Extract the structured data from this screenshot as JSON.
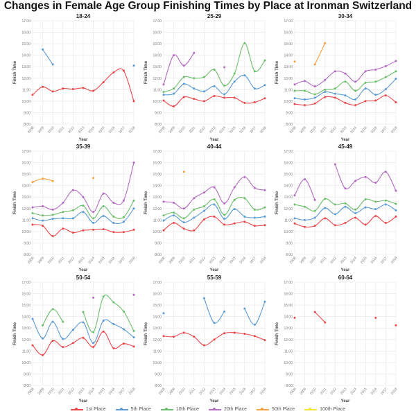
{
  "title": "Changes in Female Age Group Finishing Times by Place at Ironman Switzerland",
  "chart_data": {
    "type": "line",
    "xlabel": "Year",
    "ylabel": "Finish Time",
    "x": [
      2008,
      2009,
      2010,
      2011,
      2012,
      2013,
      2014,
      2015,
      2016,
      2017,
      2018
    ],
    "yticks": [
      "8:00",
      "9:00",
      "10:00",
      "11:00",
      "12:00",
      "13:00",
      "14:00",
      "15:00",
      "16:00",
      "17:00"
    ],
    "ylim": [
      8,
      17
    ],
    "y_units": "hours",
    "grid": true,
    "legend_position": "bottom",
    "series_meta": [
      {
        "name": "1st Place",
        "color": "#e8474a"
      },
      {
        "name": "5th Place",
        "color": "#5b9bd5"
      },
      {
        "name": "10th Place",
        "color": "#6abf69"
      },
      {
        "name": "20th Place",
        "color": "#b36ac2"
      },
      {
        "name": "50th Place",
        "color": "#f7a03c"
      },
      {
        "name": "100th Place",
        "color": "#f2e33a"
      }
    ],
    "panels": [
      {
        "title": "18-24",
        "series": [
          [
            10.55,
            11.25,
            10.85,
            11.1,
            11.05,
            11.15,
            10.9,
            11.65,
            12.5,
            12.65,
            10.0
          ],
          [
            null,
            14.5,
            13.2,
            null,
            null,
            null,
            null,
            null,
            null,
            null,
            13.1
          ],
          [],
          [],
          [],
          []
        ]
      },
      {
        "title": "25-29",
        "series": [
          [
            10.05,
            9.55,
            10.35,
            10.2,
            10.0,
            10.45,
            10.3,
            10.3,
            9.85,
            9.9,
            10.25
          ],
          [
            10.55,
            10.65,
            11.5,
            11.1,
            10.85,
            11.3,
            10.6,
            11.7,
            12.25,
            11.1,
            11.4
          ],
          [
            10.8,
            11.1,
            12.1,
            12.0,
            12.1,
            12.75,
            11.35,
            12.4,
            15.05,
            12.6,
            13.55
          ],
          [
            11.45,
            14.0,
            13.1,
            14.2,
            null,
            null,
            12.95,
            null,
            null,
            null,
            null
          ],
          [],
          []
        ]
      },
      {
        "title": "30-34",
        "series": [
          [
            9.75,
            9.65,
            9.8,
            10.35,
            10.3,
            9.85,
            9.65,
            10.0,
            10.05,
            10.5,
            9.9
          ],
          [
            10.25,
            10.15,
            10.3,
            10.8,
            10.65,
            10.5,
            10.15,
            11.1,
            10.55,
            11.05,
            11.95
          ],
          [
            10.9,
            10.9,
            10.6,
            11.0,
            11.1,
            11.7,
            10.9,
            11.6,
            11.7,
            12.1,
            12.6
          ],
          [
            11.45,
            11.75,
            11.3,
            11.85,
            12.6,
            12.4,
            11.7,
            12.6,
            12.75,
            13.05,
            13.5
          ],
          [
            13.45,
            null,
            13.2,
            15.05,
            null,
            null,
            null,
            null,
            null,
            null,
            null
          ],
          []
        ]
      },
      {
        "title": "35-39",
        "series": [
          [
            10.6,
            10.5,
            9.6,
            10.25,
            9.9,
            10.1,
            10.15,
            10.2,
            9.95,
            9.95,
            10.15
          ],
          [
            11.15,
            10.95,
            11.1,
            11.15,
            11.15,
            11.7,
            10.75,
            11.35,
            10.75,
            10.85,
            12.0
          ],
          [
            11.6,
            11.4,
            11.45,
            11.7,
            11.85,
            12.25,
            11.15,
            12.2,
            11.3,
            11.25,
            12.7
          ],
          [
            12.1,
            12.2,
            11.9,
            12.5,
            13.6,
            13.0,
            11.7,
            13.3,
            12.5,
            12.7,
            16.0
          ],
          [
            14.3,
            14.6,
            14.4,
            null,
            null,
            null,
            14.65,
            null,
            null,
            null,
            null
          ],
          []
        ]
      },
      {
        "title": "40-44",
        "series": [
          [
            10.1,
            10.75,
            10.25,
            10.1,
            11.05,
            11.3,
            10.6,
            10.7,
            10.85,
            10.5,
            10.55
          ],
          [
            10.95,
            11.4,
            10.8,
            11.2,
            11.8,
            12.35,
            11.1,
            11.95,
            11.3,
            11.2,
            11.3
          ],
          [
            11.4,
            11.65,
            11.15,
            11.9,
            12.2,
            12.8,
            11.45,
            12.75,
            12.9,
            11.9,
            12.1
          ],
          [
            12.6,
            12.5,
            12.0,
            12.9,
            13.4,
            13.85,
            12.45,
            13.85,
            14.75,
            13.8,
            13.6
          ],
          [
            null,
            null,
            15.2,
            null,
            null,
            null,
            null,
            null,
            null,
            null,
            null
          ],
          []
        ]
      },
      {
        "title": "45-49",
        "series": [
          [
            10.7,
            10.4,
            10.5,
            11.15,
            10.55,
            10.75,
            11.2,
            10.6,
            11.35,
            10.75,
            11.3
          ],
          [
            11.15,
            11.0,
            11.2,
            12.05,
            11.5,
            12.15,
            11.6,
            12.1,
            11.95,
            12.35,
            11.85
          ],
          [
            12.35,
            12.15,
            11.8,
            12.85,
            12.35,
            12.45,
            11.9,
            12.8,
            12.6,
            12.7,
            12.4
          ],
          [
            13.15,
            14.55,
            12.75,
            null,
            15.85,
            13.75,
            14.4,
            14.75,
            14.25,
            15.2,
            13.55
          ],
          [],
          []
        ]
      },
      {
        "title": "50-54",
        "series": [
          [
            11.5,
            10.65,
            11.9,
            11.35,
            11.7,
            12.15,
            11.35,
            12.7,
            11.25,
            11.65,
            11.4
          ],
          [
            13.8,
            12.1,
            13.55,
            12.05,
            12.85,
            13.5,
            11.7,
            13.65,
            13.35,
            12.9,
            12.2
          ],
          [
            null,
            13.25,
            14.65,
            13.55,
            null,
            14.4,
            12.65,
            15.75,
            15.25,
            14.45,
            12.75
          ],
          [
            null,
            null,
            null,
            null,
            null,
            null,
            15.65,
            null,
            null,
            null,
            15.9
          ],
          [],
          []
        ]
      },
      {
        "title": "55-59",
        "series": [
          [
            12.3,
            12.25,
            12.6,
            12.25,
            11.5,
            12.0,
            12.55,
            12.6,
            12.5,
            12.3,
            11.95
          ],
          [
            14.3,
            null,
            null,
            null,
            15.6,
            13.45,
            14.45,
            null,
            14.7,
            13.3,
            15.3
          ],
          [],
          [],
          [],
          []
        ]
      },
      {
        "title": "60-64",
        "series": [
          [
            13.9,
            null,
            14.4,
            13.5,
            null,
            null,
            null,
            null,
            13.9,
            null,
            13.25
          ],
          [],
          [],
          [],
          [],
          []
        ]
      }
    ]
  }
}
